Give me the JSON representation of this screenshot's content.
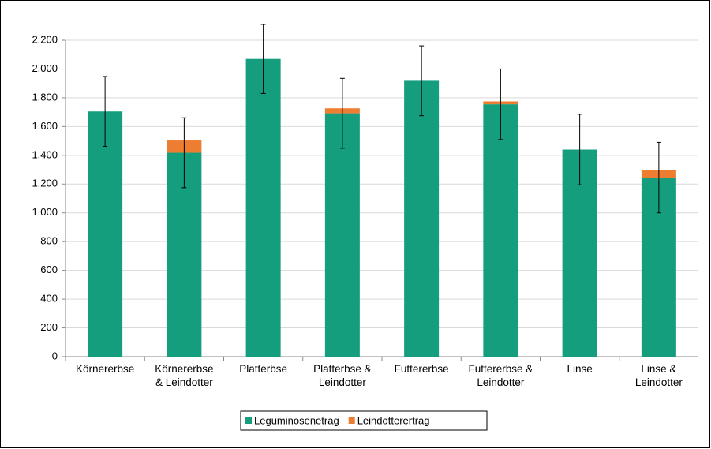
{
  "chart_data": {
    "type": "stacked-bar",
    "categories": [
      "Körnererbse",
      "Körnererbse\n& Leindotter",
      "Platterbse",
      "Platterbse &\nLeindotter",
      "Futtererbse",
      "Futtererbse &\nLeindotter",
      "Linse",
      "Linse &\nLeindotter"
    ],
    "series": [
      {
        "name": "Leguminosenetrag",
        "color": "#159e7e",
        "values": [
          1705,
          1418,
          2070,
          1692,
          1918,
          1755,
          1440,
          1245
        ]
      },
      {
        "name": "Leindotterertrag",
        "color": "#ed7d31",
        "values": [
          0,
          85,
          0,
          35,
          0,
          20,
          0,
          55
        ]
      }
    ],
    "errors": [
      243,
      243,
      240,
      243,
      243,
      245,
      245,
      245
    ],
    "ylim": [
      0,
      2200
    ],
    "yticks": [
      0,
      200,
      400,
      600,
      800,
      {
        "value": 1000,
        "label": "1.000"
      },
      {
        "value": 1200,
        "label": "1.200"
      },
      {
        "value": 1400,
        "label": "1.400"
      },
      {
        "value": 1600,
        "label": "1.600"
      },
      {
        "value": 1800,
        "label": "1.800"
      },
      {
        "value": 2000,
        "label": "2.000"
      },
      {
        "value": 2200,
        "label": "2.200"
      }
    ],
    "grid": true,
    "legend": "bottom"
  }
}
